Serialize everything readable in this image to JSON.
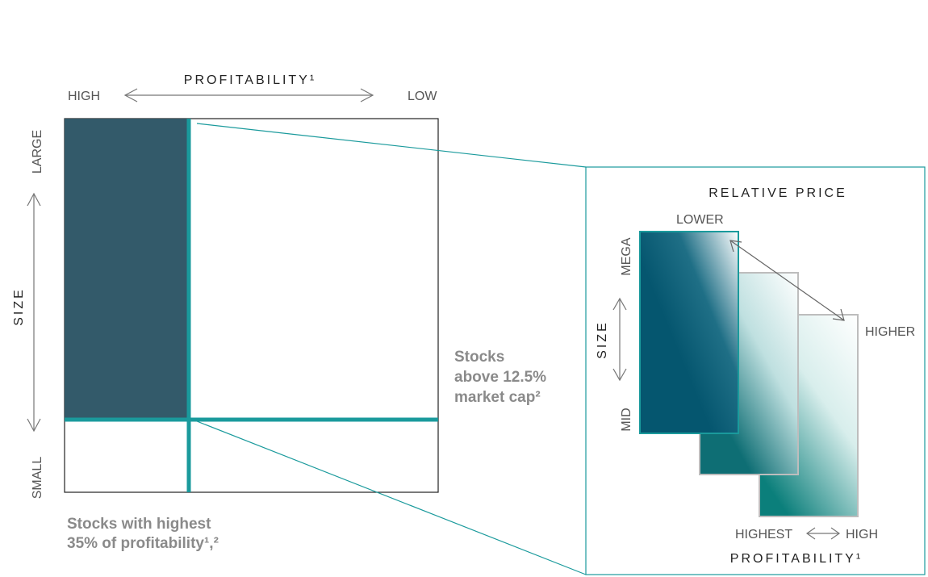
{
  "left_grid": {
    "profitability_title": "PROFITABILITY¹",
    "high_label": "HIGH",
    "low_label": "LOW",
    "size_title": "SIZE",
    "large_label": "LARGE",
    "small_label": "SMALL"
  },
  "notes": {
    "above_market_cap": [
      "Stocks",
      "above 12.5%",
      "market cap²"
    ],
    "highest_profitability": [
      "Stocks with highest",
      "35% of profitability¹,²"
    ]
  },
  "zoom_panel": {
    "relative_price_title": "RELATIVE PRICE",
    "lower_label": "LOWER",
    "higher_label": "HIGHER",
    "size_title": "SIZE",
    "mega_label": "MEGA",
    "mid_label": "MID",
    "highest_label": "HIGHEST",
    "high_label": "HIGH",
    "profitability_title": "PROFITABILITY¹"
  },
  "colors": {
    "dark_block": "#335A6A",
    "teal_line": "#1A9A9C",
    "grey_border": "#BDBDBD",
    "note_grey": "#8A8A8A"
  }
}
